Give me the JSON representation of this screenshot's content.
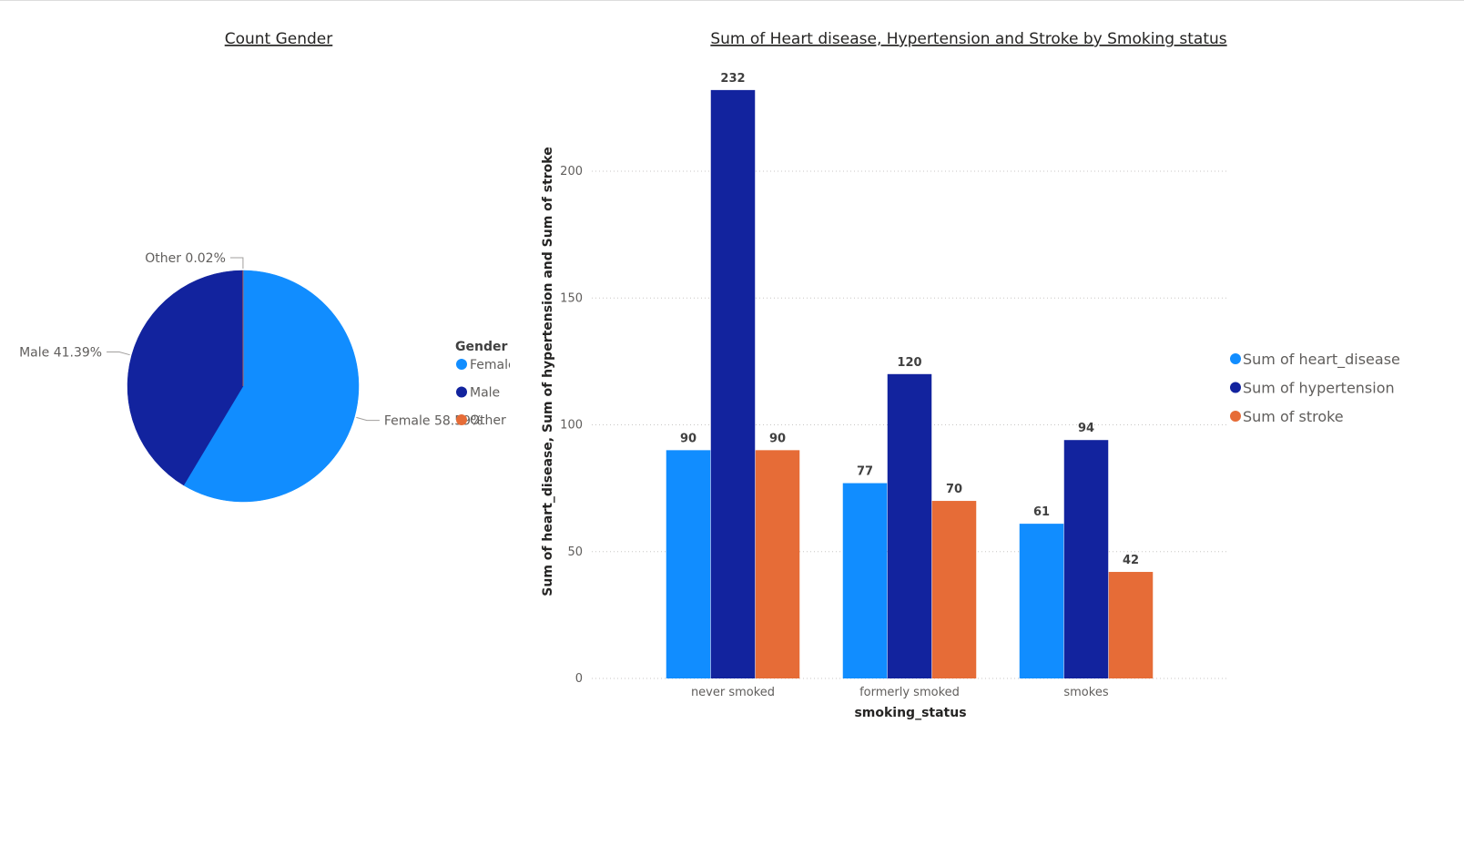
{
  "pie_chart": {
    "title": "Count Gender",
    "legend_title": "Gender"
  },
  "bar_chart": {
    "title": "Sum of Heart disease, Hypertension and Stroke by Smoking status",
    "xlabel": "smoking_status",
    "ylabel": "Sum of heart_disease, Sum of hypertension and Sum of stroke"
  },
  "chart_data": [
    {
      "type": "pie",
      "title": "Count Gender",
      "legend_title": "Gender",
      "legend_position": "right",
      "slices": [
        {
          "label": "Female",
          "percent": 58.59,
          "label_text": "Female 58.59%",
          "color": "#118DFF"
        },
        {
          "label": "Male",
          "percent": 41.39,
          "label_text": "Male 41.39%",
          "color": "#12239E"
        },
        {
          "label": "Other",
          "percent": 0.02,
          "label_text": "Other 0.02%",
          "color": "#E66C37"
        }
      ]
    },
    {
      "type": "bar",
      "title": "Sum of Heart disease, Hypertension and Stroke by Smoking status",
      "xlabel": "smoking_status",
      "ylabel": "Sum of heart_disease, Sum of hypertension and Sum of stroke",
      "categories": [
        "never smoked",
        "formerly smoked",
        "smokes"
      ],
      "series": [
        {
          "name": "Sum of heart_disease",
          "values": [
            90,
            77,
            61
          ],
          "color": "#118DFF"
        },
        {
          "name": "Sum of hypertension",
          "values": [
            232,
            120,
            94
          ],
          "color": "#12239E"
        },
        {
          "name": "Sum of stroke",
          "values": [
            90,
            70,
            42
          ],
          "color": "#E66C37"
        }
      ],
      "ylim": [
        0,
        232
      ],
      "yticks": [
        0,
        50,
        100,
        150,
        200
      ],
      "grid": true,
      "legend_position": "right"
    }
  ]
}
